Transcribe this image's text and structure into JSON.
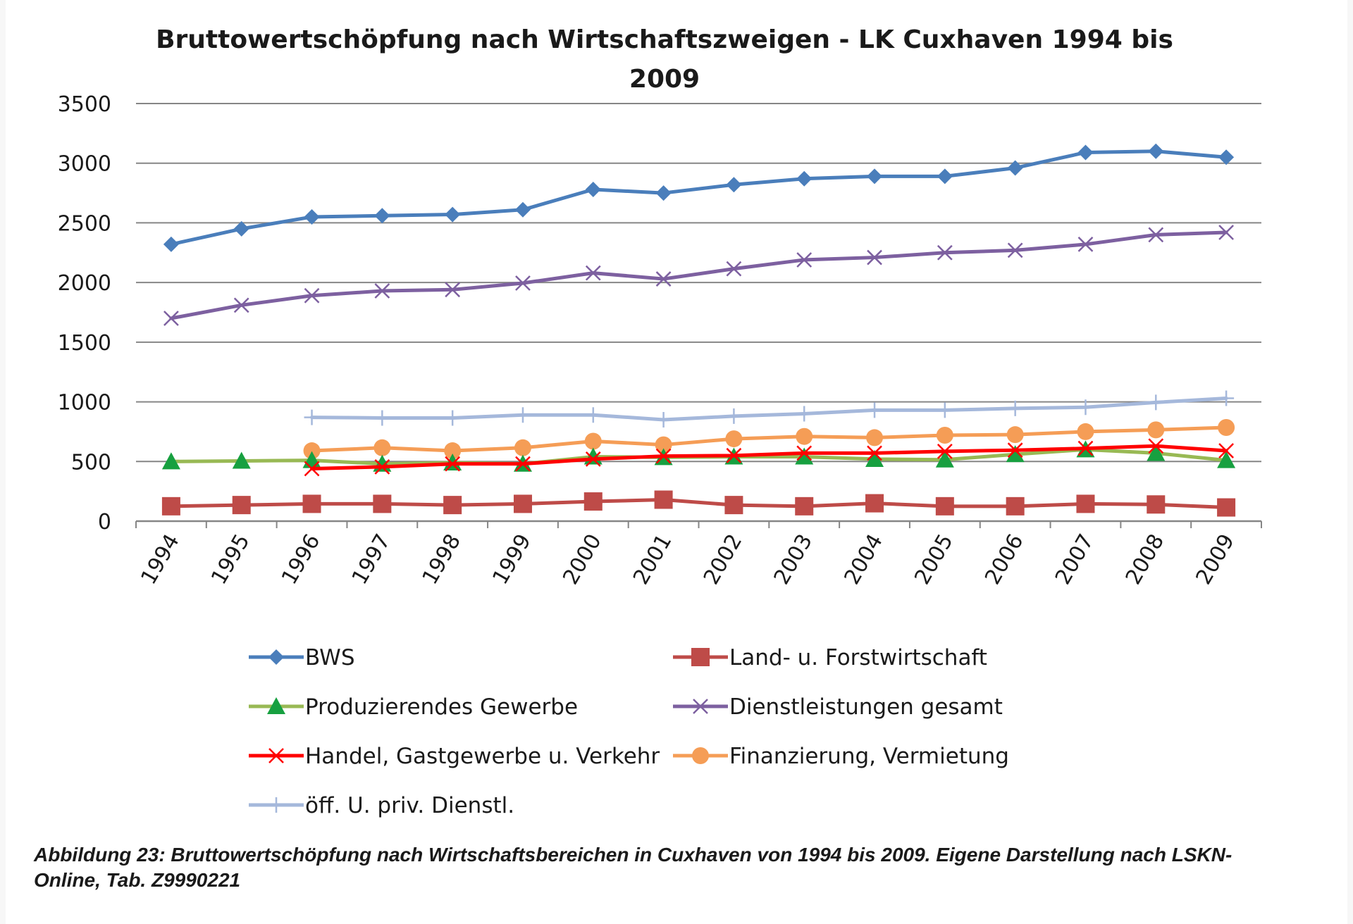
{
  "caption": "Abbildung 23: Bruttowertschöpfung nach Wirtschaftsbereichen in Cuxhaven von 1994 bis 2009. Eigene Darstellung nach LSKN-Online, Tab. Z9990221",
  "chart_data": {
    "type": "line",
    "title": "Bruttowertschöpfung nach Wirtschaftszweigen - LK Cuxhaven 1994 bis 2009",
    "title_lines": [
      "Bruttowertschöpfung nach Wirtschaftszweigen - LK Cuxhaven 1994 bis",
      "2009"
    ],
    "xlabel": "",
    "ylabel": "",
    "ylim": [
      0,
      3500
    ],
    "yticks": [
      0,
      500,
      1000,
      1500,
      2000,
      2500,
      3000,
      3500
    ],
    "grid": true,
    "legend_position": "bottom",
    "categories": [
      "1994",
      "1995",
      "1996",
      "1997",
      "1998",
      "1999",
      "2000",
      "2001",
      "2002",
      "2003",
      "2004",
      "2005",
      "2006",
      "2007",
      "2008",
      "2009"
    ],
    "series": [
      {
        "name": "BWS",
        "color": "#4a7ebb",
        "marker": "diamond",
        "values": [
          2320,
          2450,
          2550,
          2560,
          2570,
          2610,
          2780,
          2750,
          2820,
          2870,
          2890,
          2890,
          2960,
          3090,
          3100,
          3050
        ]
      },
      {
        "name": "Land- u. Forstwirtschaft",
        "color": "#be4b48",
        "marker": "square",
        "values": [
          125,
          135,
          145,
          145,
          135,
          145,
          165,
          180,
          135,
          125,
          150,
          125,
          125,
          145,
          140,
          115
        ]
      },
      {
        "name": "Produzierendes Gewerbe",
        "color": "#98b954",
        "marker": "triangle",
        "values": [
          500,
          505,
          510,
          480,
          490,
          480,
          540,
          535,
          540,
          540,
          520,
          515,
          560,
          600,
          570,
          510
        ]
      },
      {
        "name": "Dienstleistungen gesamt",
        "color": "#7d60a0",
        "marker": "x",
        "values": [
          1700,
          1810,
          1890,
          1930,
          1940,
          1995,
          2080,
          2030,
          2115,
          2190,
          2210,
          2250,
          2270,
          2320,
          2400,
          2420
        ]
      },
      {
        "name": "Handel, Gastgewerbe u. Verkehr",
        "color": "#ff0000",
        "marker": "x",
        "values": [
          null,
          null,
          440,
          455,
          480,
          480,
          520,
          545,
          550,
          570,
          570,
          585,
          595,
          610,
          630,
          590
        ]
      },
      {
        "name": "Finanzierung, Vermietung",
        "color": "#f59d56",
        "marker": "circle",
        "values": [
          null,
          null,
          590,
          615,
          590,
          615,
          670,
          640,
          690,
          710,
          700,
          720,
          725,
          750,
          765,
          785
        ]
      },
      {
        "name": "öff. U. priv. Dienstl.",
        "color": "#a5b8db",
        "marker": "plus",
        "values": [
          null,
          null,
          870,
          865,
          865,
          890,
          890,
          850,
          880,
          900,
          930,
          930,
          945,
          955,
          995,
          1030
        ]
      }
    ]
  }
}
